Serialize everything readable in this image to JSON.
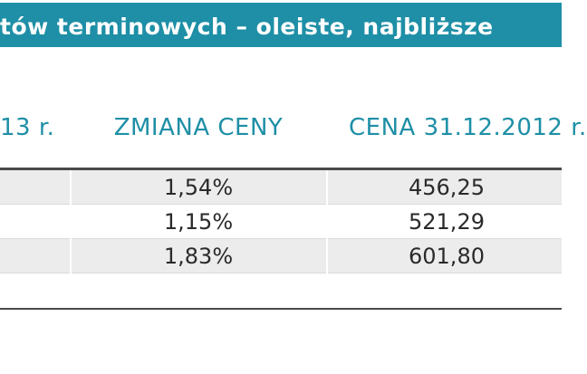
{
  "title": "tów terminowych – oleiste, najbliższe",
  "headers": [
    "13 r.",
    "ZMIANA CENY",
    "CENA 31.12.2012 r."
  ],
  "rows": [
    {
      "change": "1,54%",
      "price": "456,25"
    },
    {
      "change": "1,15%",
      "price": "521,29"
    },
    {
      "change": "1,83%",
      "price": "601,80"
    }
  ],
  "colors": {
    "accent": "#1e8fa6",
    "row_shade": "#ececec",
    "text": "#2a2a2a",
    "rule": "#4a4a4a"
  }
}
